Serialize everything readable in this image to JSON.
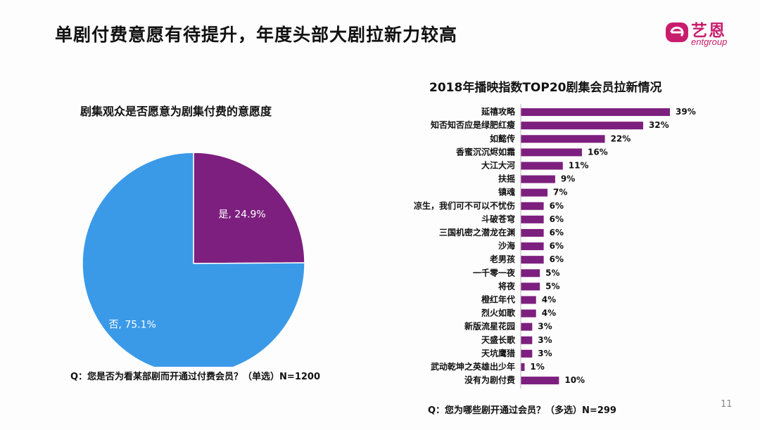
{
  "slide": {
    "title": "单剧付费意愿有待提升，年度头部大剧拉新力较高",
    "page_number": "11"
  },
  "logo": {
    "cn": "艺恩",
    "en": "entgroup"
  },
  "colors": {
    "purple": "#7d1f7e",
    "blue": "#3b9ae8",
    "brand": "#c81d6d"
  },
  "chart_data": [
    {
      "type": "pie",
      "title": "剧集观众是否愿意为剧集付费的意愿度",
      "slices": [
        {
          "label": "是",
          "value": 24.9,
          "display": "24.9%",
          "color": "#7d1f7e"
        },
        {
          "label": "否",
          "value": 75.1,
          "display": "75.1%",
          "color": "#3b9ae8"
        }
      ],
      "note": "Q：您是否为看某部剧而开通过付费会员？（单选）N=1200"
    },
    {
      "type": "bar",
      "orientation": "horizontal",
      "title": "2018年播映指数TOP20剧集会员拉新情况",
      "categories": [
        "延禧攻略",
        "知否知否应是绿肥红瘦",
        "如懿传",
        "香蜜沉沉烬如霜",
        "大江大河",
        "扶摇",
        "镇魂",
        "凉生，我们可不可以不忧伤",
        "斗破苍穹",
        "三国机密之潜龙在渊",
        "沙海",
        "老男孩",
        "一千零一夜",
        "将夜",
        "橙红年代",
        "烈火如歌",
        "新版流星花园",
        "天盛长歌",
        "天坑鹰猎",
        "武动乾坤之英雄出少年",
        "没有为剧付费"
      ],
      "values": [
        39,
        32,
        22,
        16,
        11,
        9,
        7,
        6,
        6,
        6,
        6,
        6,
        5,
        5,
        4,
        4,
        3,
        3,
        3,
        1,
        10
      ],
      "unit": "%",
      "color": "#7d1f7e",
      "xlim": [
        0,
        39
      ],
      "note": "Q：您为哪些剧开通过会员？（多选）N=299"
    }
  ]
}
